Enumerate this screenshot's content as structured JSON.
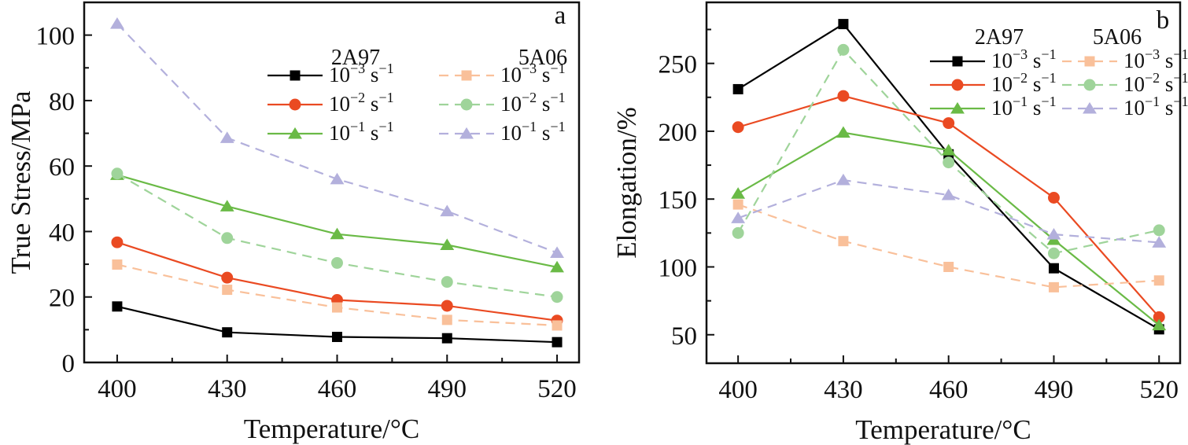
{
  "chart_data": [
    {
      "type": "line",
      "panel_label": "a",
      "title": "",
      "xlabel": "Temperature/°C",
      "ylabel": "True Stress/MPa",
      "x": [
        400,
        430,
        460,
        490,
        520
      ],
      "x_tick_labels": [
        "400",
        "430",
        "460",
        "490",
        "520"
      ],
      "xlim": [
        391,
        526
      ],
      "ylim": [
        0,
        110
      ],
      "y_ticks": [
        0,
        20,
        40,
        60,
        80,
        100
      ],
      "y_tick_labels": [
        "0",
        "20",
        "40",
        "60",
        "80",
        "100"
      ],
      "grid": false,
      "legend_placement": "top-right",
      "legend_groups": [
        "2A97",
        "5A06"
      ],
      "series": [
        {
          "group": "2A97",
          "name": "10⁻³ s⁻¹",
          "base": "10",
          "exp": "−3",
          "unit": " s",
          "unit_exp": "−1",
          "color": "#000000",
          "marker": "square",
          "dashed": false,
          "values": [
            17.1,
            9.2,
            7.8,
            7.4,
            6.2
          ]
        },
        {
          "group": "2A97",
          "name": "10⁻² s⁻¹",
          "base": "10",
          "exp": "−2",
          "unit": " s",
          "unit_exp": "−1",
          "color": "#ea4a22",
          "marker": "circle",
          "dashed": false,
          "values": [
            36.7,
            25.9,
            19.1,
            17.3,
            12.8
          ]
        },
        {
          "group": "2A97",
          "name": "10⁻¹ s⁻¹",
          "base": "10",
          "exp": "−1",
          "unit": " s",
          "unit_exp": "−1",
          "color": "#6aba46",
          "marker": "triangle",
          "dashed": false,
          "values": [
            57.3,
            47.7,
            39.2,
            35.9,
            29.1
          ]
        },
        {
          "group": "5A06",
          "name": "10⁻³ s⁻¹",
          "base": "10",
          "exp": "−3",
          "unit": " s",
          "unit_exp": "−1",
          "color": "#f9c09a",
          "marker": "square",
          "dashed": true,
          "values": [
            29.9,
            22.2,
            16.8,
            13.0,
            11.3
          ]
        },
        {
          "group": "5A06",
          "name": "10⁻² s⁻¹",
          "base": "10",
          "exp": "−2",
          "unit": " s",
          "unit_exp": "−1",
          "color": "#9fd49a",
          "marker": "circle",
          "dashed": true,
          "values": [
            57.7,
            38.0,
            30.4,
            24.6,
            20.0
          ]
        },
        {
          "group": "5A06",
          "name": "10⁻¹ s⁻¹",
          "base": "10",
          "exp": "−1",
          "unit": " s",
          "unit_exp": "−1",
          "color": "#b3b0dc",
          "marker": "triangle",
          "dashed": true,
          "values": [
            103.5,
            68.6,
            56.0,
            46.2,
            33.5
          ]
        }
      ]
    },
    {
      "type": "line",
      "panel_label": "b",
      "title": "",
      "xlabel": "Temperature/°C",
      "ylabel": "Elongation/%",
      "x": [
        400,
        430,
        460,
        490,
        520
      ],
      "x_tick_labels": [
        "400",
        "430",
        "460",
        "490",
        "520"
      ],
      "xlim": [
        391,
        526
      ],
      "ylim": [
        29,
        295
      ],
      "y_ticks": [
        50,
        100,
        150,
        200,
        250
      ],
      "y_tick_labels": [
        "50",
        "100",
        "150",
        "200",
        "250"
      ],
      "grid": false,
      "legend_placement": "top-right",
      "legend_groups": [
        "2A97",
        "5A06"
      ],
      "series": [
        {
          "group": "2A97",
          "name": "10⁻³ s⁻¹",
          "base": "10",
          "exp": "−3",
          "unit": " s",
          "unit_exp": "−1",
          "color": "#000000",
          "marker": "square",
          "dashed": false,
          "values": [
            231,
            279,
            183,
            99,
            54
          ]
        },
        {
          "group": "2A97",
          "name": "10⁻² s⁻¹",
          "base": "10",
          "exp": "−2",
          "unit": " s",
          "unit_exp": "−1",
          "color": "#ea4a22",
          "marker": "circle",
          "dashed": false,
          "values": [
            203,
            226,
            206,
            151,
            63
          ]
        },
        {
          "group": "2A97",
          "name": "10⁻¹ s⁻¹",
          "base": "10",
          "exp": "−1",
          "unit": " s",
          "unit_exp": "−1",
          "color": "#6aba46",
          "marker": "triangle",
          "dashed": false,
          "values": [
            154,
            199,
            186,
            120,
            57
          ]
        },
        {
          "group": "5A06",
          "name": "10⁻³ s⁻¹",
          "base": "10",
          "exp": "−3",
          "unit": " s",
          "unit_exp": "−1",
          "color": "#f9c09a",
          "marker": "square",
          "dashed": true,
          "values": [
            146,
            119,
            100,
            85,
            90
          ]
        },
        {
          "group": "5A06",
          "name": "10⁻² s⁻¹",
          "base": "10",
          "exp": "−2",
          "unit": " s",
          "unit_exp": "−1",
          "color": "#9fd49a",
          "marker": "circle",
          "dashed": true,
          "values": [
            125,
            260,
            177,
            110,
            127
          ]
        },
        {
          "group": "5A06",
          "name": "10⁻¹ s⁻¹",
          "base": "10",
          "exp": "−1",
          "unit": " s",
          "unit_exp": "−1",
          "color": "#b3b0dc",
          "marker": "triangle",
          "dashed": true,
          "values": [
            136,
            164,
            153,
            124,
            118
          ]
        }
      ]
    }
  ]
}
